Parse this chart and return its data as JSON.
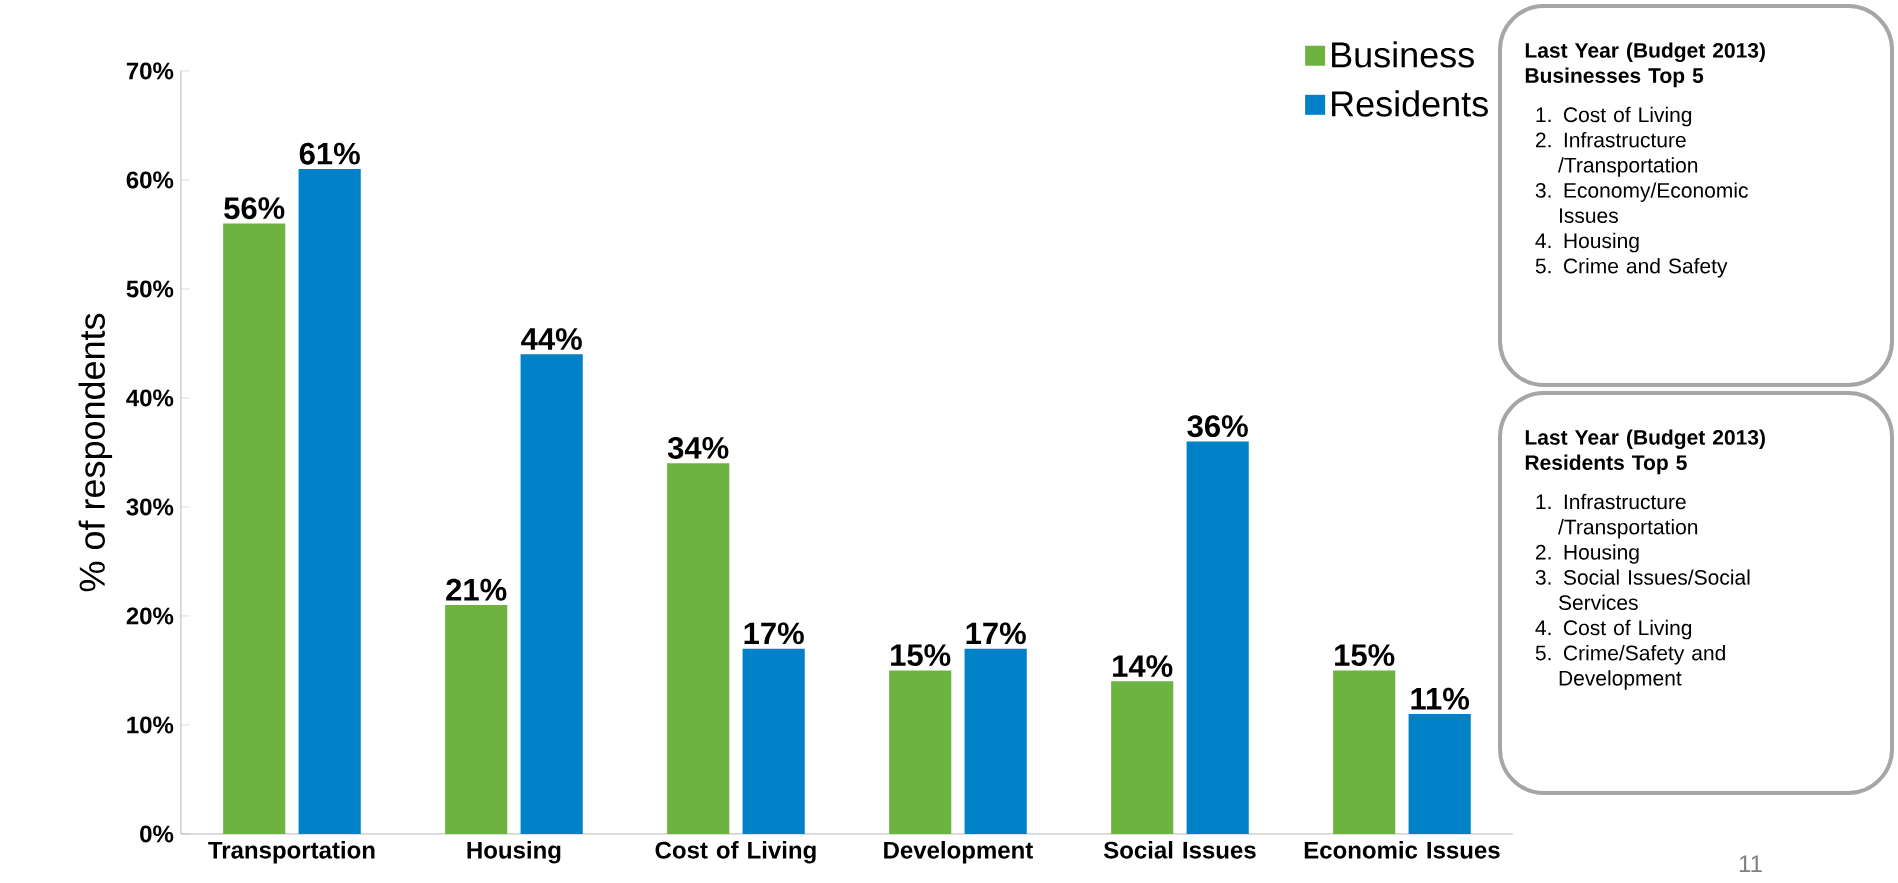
{
  "chart_data": {
    "type": "bar",
    "ylabel": "% of respondents",
    "categories": [
      "Transportation",
      "Housing",
      "Cost of Living",
      "Development",
      "Social Issues",
      "Economic Issues"
    ],
    "series": [
      {
        "name": "Business",
        "color": "#6db33f",
        "values": [
          56,
          21,
          34,
          15,
          14,
          15
        ],
        "value_labels": [
          "56%",
          "21%",
          "34%",
          "15%",
          "14%",
          "15%"
        ]
      },
      {
        "name": "Residents",
        "color": "#0080c6",
        "values": [
          61,
          44,
          17,
          17,
          36,
          11
        ],
        "value_labels": [
          "61%",
          "44%",
          "17%",
          "17%",
          "36%",
          "11%"
        ]
      }
    ],
    "ylim": [
      0,
      70
    ],
    "yticks": [
      {
        "value": 0,
        "label": "0%"
      },
      {
        "value": 10,
        "label": "10%"
      },
      {
        "value": 20,
        "label": "20%"
      },
      {
        "value": 30,
        "label": "30%"
      },
      {
        "value": 40,
        "label": "40%"
      },
      {
        "value": 50,
        "label": "50%"
      },
      {
        "value": 60,
        "label": "60%"
      },
      {
        "value": 70,
        "label": "70%"
      }
    ],
    "grid": false,
    "legend": "top right",
    "annotations": [
      "Last Year (Budget 2013)",
      "Businesses Top 5",
      "1. Cost of Living",
      "2. Infrastructure /Transportation",
      "3. Economy/Economic Issues",
      "4. Housing",
      "5. Crime and Safety",
      "Last Year (Budget 2013)",
      "Residents Top 5",
      "1. Infrastructure /Transportation",
      "2. Housing",
      "3. Social Issues/Social Services",
      "4. Cost of Living",
      "5. Crime/Safety and Development",
      "11"
    ]
  }
}
